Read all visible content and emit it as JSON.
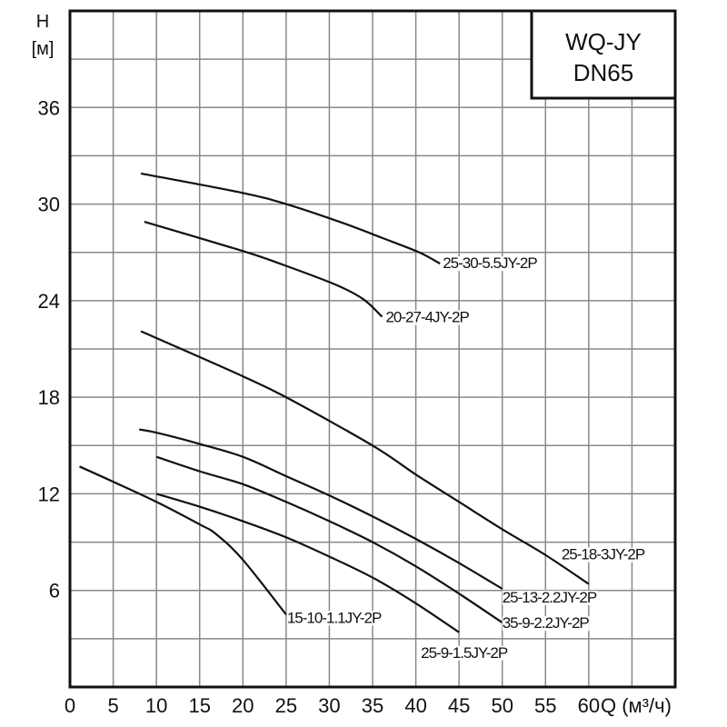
{
  "chart_data": {
    "type": "line",
    "title": "",
    "legend_box": {
      "line1": "WQ-JY",
      "line2": "DN65"
    },
    "xlabel": "Q (м³/ч)",
    "ylabel_top": "H",
    "ylabel_unit": "[м]",
    "xlim": [
      0,
      70
    ],
    "ylim": [
      0,
      42
    ],
    "x_ticks": [
      0,
      5,
      10,
      15,
      20,
      25,
      30,
      35,
      40,
      45,
      50,
      55,
      60
    ],
    "y_ticks": [
      6,
      12,
      18,
      24,
      30,
      36
    ],
    "x_grid_step": 5,
    "y_grid_step": 3,
    "grid": true,
    "line_color": "#111111",
    "grid_color": "#888888",
    "series": [
      {
        "name": "25-30-5.5JY-2P",
        "x": [
          8.2,
          19.9,
          25.0,
          31.7,
          36.1,
          40.4,
          42.8
        ],
        "y": [
          31.9,
          30.7,
          30.0,
          28.8,
          27.9,
          27.0,
          26.3
        ]
      },
      {
        "name": "20-27-4JY-2P",
        "x": [
          8.6,
          19.9,
          24.8,
          30.7,
          33.9,
          36.1
        ],
        "y": [
          28.9,
          27.1,
          26.2,
          25.0,
          24.1,
          23.0
        ]
      },
      {
        "name": "25-18-3JY-2P",
        "x": [
          8.2,
          15,
          20,
          25,
          35,
          40,
          45,
          50,
          55,
          60
        ],
        "y": [
          22.1,
          20.5,
          19.3,
          18.0,
          15.0,
          13.2,
          11.5,
          9.8,
          8.2,
          6.4
        ]
      },
      {
        "name": "25-13-2.2JY-2P",
        "x": [
          8.0,
          10,
          15,
          20,
          25,
          30,
          35,
          40,
          45,
          50
        ],
        "y": [
          16.0,
          15.8,
          15.1,
          14.3,
          13.1,
          11.9,
          10.6,
          9.2,
          7.7,
          6.1
        ]
      },
      {
        "name": "35-9-2.2JY-2P",
        "x": [
          10,
          15,
          20,
          25,
          30,
          35,
          40,
          45,
          50
        ],
        "y": [
          14.3,
          13.4,
          12.6,
          11.5,
          10.3,
          9.0,
          7.5,
          5.8,
          4.0
        ]
      },
      {
        "name": "25-9-1.5JY-2P",
        "x": [
          10,
          15,
          20,
          25,
          30,
          35,
          40,
          45
        ],
        "y": [
          12.0,
          11.2,
          10.3,
          9.3,
          8.1,
          6.8,
          5.2,
          3.4
        ]
      },
      {
        "name": "15-10-1.1JY-2P",
        "x": [
          1.1,
          4.8,
          10,
          15,
          16.9,
          20,
          25
        ],
        "y": [
          13.7,
          12.8,
          11.5,
          10.1,
          9.5,
          7.9,
          4.5
        ]
      }
    ]
  }
}
